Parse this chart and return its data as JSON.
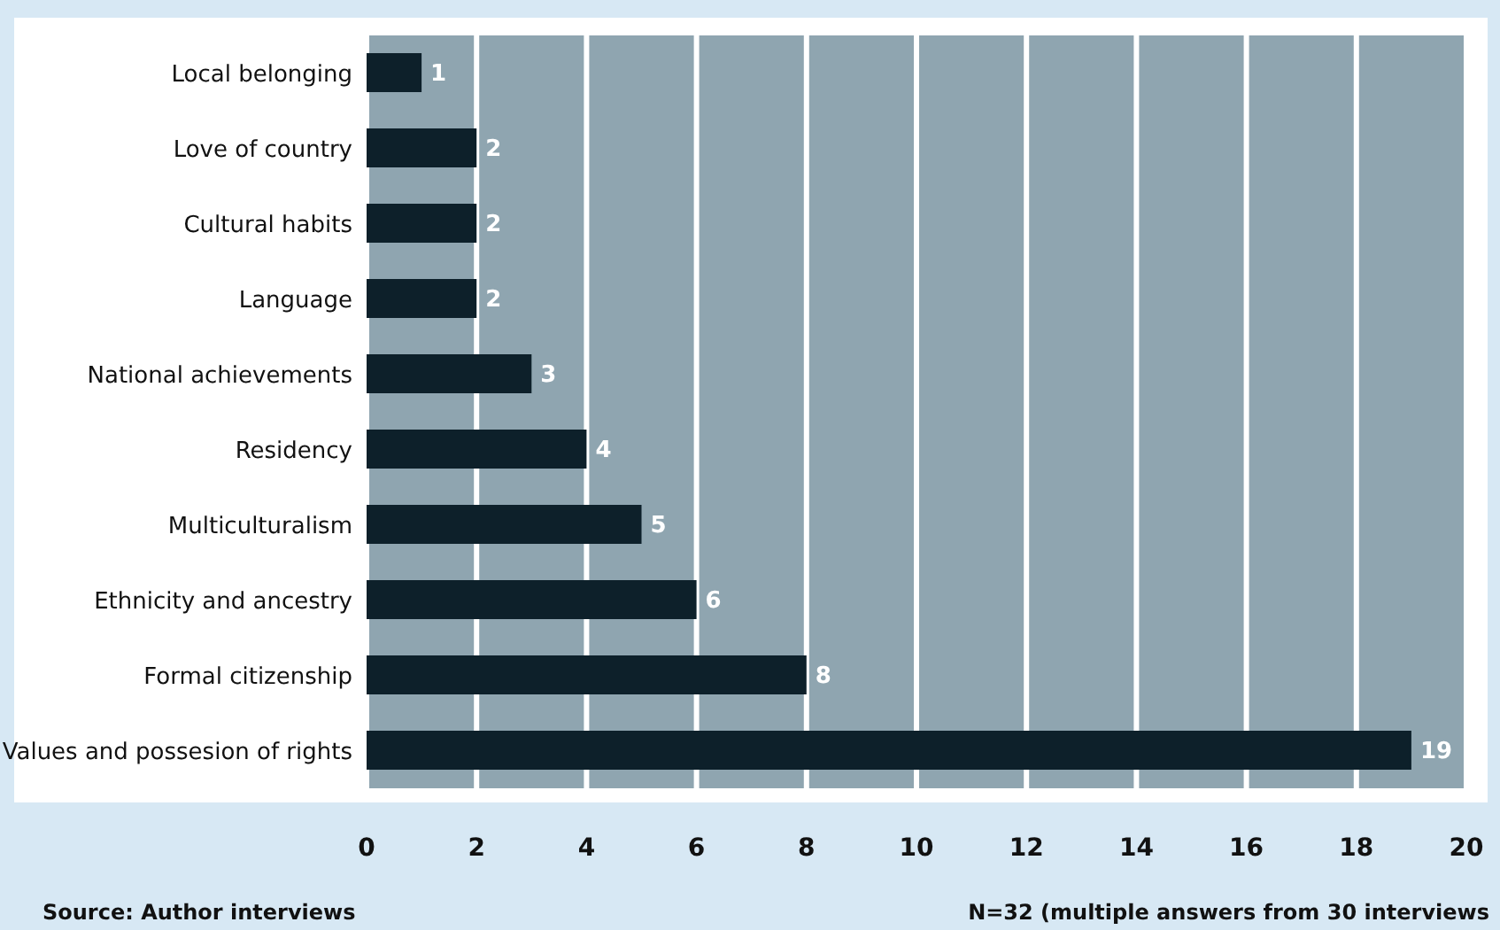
{
  "chart_data": {
    "type": "bar",
    "orientation": "horizontal",
    "categories": [
      "Local belonging",
      "Love of country",
      "Cultural habits",
      "Language",
      "National  achievements",
      "Residency",
      "Multiculturalism",
      "Ethnicity and ancestry",
      "Formal citizenship",
      "Values and possesion of rights"
    ],
    "values": [
      1,
      2,
      2,
      2,
      3,
      4,
      5,
      6,
      8,
      19
    ],
    "color": "#0d202a",
    "xlim": [
      0,
      20
    ],
    "xticks": [
      0,
      2,
      4,
      6,
      8,
      10,
      12,
      14,
      16,
      18,
      20
    ],
    "grid": "x",
    "data_labels": true,
    "annotations": [
      "Source: Author interviews",
      "N=32 (multiple answers from 30 interviews"
    ]
  }
}
